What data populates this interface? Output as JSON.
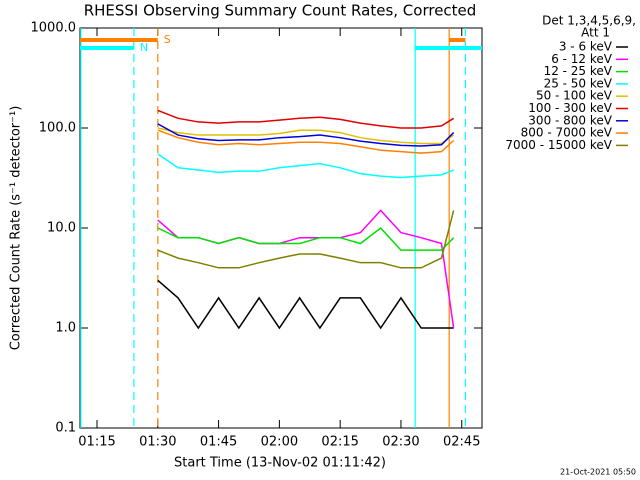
{
  "chart_data": {
    "type": "line",
    "title": "RHESSI Observing Summary Count Rates, Corrected",
    "xlabel": "Start Time (13-Nov-02 01:11:42)",
    "ylabel": "Corrected Count Rate (s⁻¹ detector⁻¹)",
    "legend_title": [
      "Det 1,3,4,5,6,9,",
      "Att 1"
    ],
    "footer": "21-Oct-2021 05:50",
    "log_y": true,
    "xlim": [
      70.8,
      170
    ],
    "ylim": [
      0.1,
      1000
    ],
    "xticks": [
      {
        "value": 75,
        "label": "01:15"
      },
      {
        "value": 90,
        "label": "01:30"
      },
      {
        "value": 105,
        "label": "01:45"
      },
      {
        "value": 120,
        "label": "02:00"
      },
      {
        "value": 135,
        "label": "02:15"
      },
      {
        "value": 150,
        "label": "02:30"
      },
      {
        "value": 165,
        "label": "02:45"
      }
    ],
    "yticks": [
      {
        "value": 0.1,
        "label": "0.1"
      },
      {
        "value": 1,
        "label": "1.0"
      },
      {
        "value": 10,
        "label": "10.0"
      },
      {
        "value": 100,
        "label": "100.0"
      },
      {
        "value": 1000,
        "label": "1000.0"
      }
    ],
    "x": [
      90,
      95,
      100,
      105,
      110,
      115,
      120,
      125,
      130,
      135,
      140,
      145,
      150,
      155,
      160,
      163
    ],
    "series": [
      {
        "name": "3 - 6 keV",
        "color": "#000000",
        "values": [
          3,
          2,
          1,
          2,
          1,
          2,
          1,
          2,
          1,
          2,
          2,
          1,
          2,
          1,
          1,
          1
        ]
      },
      {
        "name": "6 - 12 keV",
        "color": "#ff00ff",
        "values": [
          12,
          8,
          8,
          7,
          8,
          7,
          7,
          8,
          8,
          8,
          9,
          15,
          9,
          8,
          7,
          1
        ]
      },
      {
        "name": "12 - 25 keV",
        "color": "#00e000",
        "values": [
          10,
          8,
          8,
          7,
          8,
          7,
          7,
          7,
          8,
          8,
          7,
          10,
          6,
          6,
          6,
          8
        ]
      },
      {
        "name": "25 - 50 keV",
        "color": "#00ffff",
        "values": [
          55,
          40,
          38,
          36,
          37,
          37,
          40,
          42,
          44,
          40,
          35,
          33,
          32,
          33,
          34,
          38
        ]
      },
      {
        "name": "50 - 100 keV",
        "color": "#e0c000",
        "values": [
          100,
          90,
          85,
          85,
          85,
          85,
          88,
          95,
          95,
          90,
          80,
          75,
          72,
          70,
          70,
          85
        ]
      },
      {
        "name": "100 - 300 keV",
        "color": "#e00000",
        "values": [
          150,
          125,
          115,
          112,
          115,
          115,
          120,
          125,
          128,
          122,
          112,
          105,
          100,
          100,
          105,
          125
        ]
      },
      {
        "name": "300 - 800 keV",
        "color": "#0000e0",
        "values": [
          110,
          85,
          78,
          75,
          76,
          76,
          80,
          82,
          85,
          80,
          74,
          70,
          67,
          66,
          68,
          90
        ]
      },
      {
        "name": "800 - 7000 keV",
        "color": "#ff8000",
        "values": [
          95,
          80,
          72,
          68,
          70,
          68,
          70,
          72,
          72,
          70,
          65,
          60,
          58,
          56,
          58,
          75
        ]
      },
      {
        "name": "7000 - 15000 keV",
        "color": "#808000",
        "values": [
          6,
          5,
          4.5,
          4,
          4,
          4.5,
          5,
          5.5,
          5.5,
          5,
          4.5,
          4.5,
          4,
          4,
          5,
          15
        ]
      }
    ],
    "markers": [
      {
        "x": 71,
        "color": "#00ffff",
        "dashed": false
      },
      {
        "x": 84.1,
        "color": "#00ffff",
        "dashed": true
      },
      {
        "x": 90,
        "color": "#ff8000",
        "dashed": true
      },
      {
        "x": 153.5,
        "color": "#00ffff",
        "dashed": false
      },
      {
        "x": 161.9,
        "color": "#ff8000",
        "dashed": false
      },
      {
        "x": 165.9,
        "color": "#00ffff",
        "dashed": true
      }
    ],
    "flags": [
      {
        "label": "S",
        "color": "#ff8000",
        "spans": [
          [
            70.8,
            90
          ],
          [
            161.9,
            165.9
          ]
        ]
      },
      {
        "label": "N",
        "color": "#00ffff",
        "spans": [
          [
            70.8,
            84.1
          ],
          [
            153.5,
            170
          ]
        ]
      }
    ]
  }
}
